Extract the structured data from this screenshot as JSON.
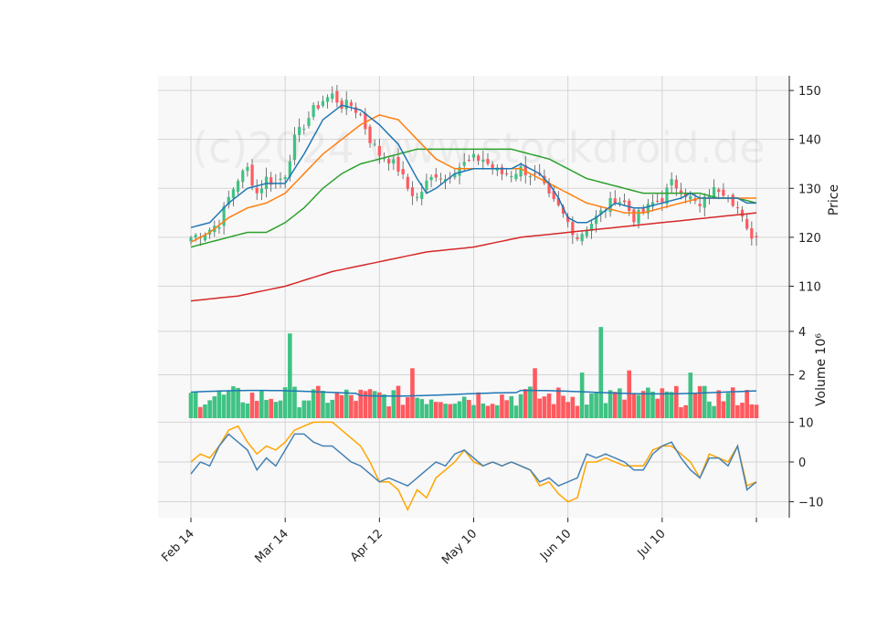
{
  "chart_data": {
    "type": "candlestick",
    "watermark": "(c)2024 www.stockdroid.de",
    "colors": {
      "up": "#3fc283",
      "down": "#ff5a5f",
      "ma_fast": "#1f77b4",
      "ma_mid": "#ff7f0e",
      "ma_slow": "#2ca02c",
      "ma_long": "#d62728",
      "vol_ma": "#1f77b4",
      "osc_1": "#4682b4",
      "osc_2": "#ffa500"
    },
    "x_ticks": [
      {
        "label": "Feb 14",
        "index": 0
      },
      {
        "label": "Mar 14",
        "index": 20
      },
      {
        "label": "Apr 12",
        "index": 40
      },
      {
        "label": "May 10",
        "index": 60
      },
      {
        "label": "Jun 10",
        "index": 80
      },
      {
        "label": "Jul 10",
        "index": 100
      },
      {
        "label": "",
        "index": 120
      }
    ],
    "n_periods": 121,
    "price_panel": {
      "ylabel": "Price",
      "ylim": [
        103,
        153
      ],
      "yticks": [
        110,
        120,
        130,
        140,
        150
      ],
      "close_keypoints": [
        [
          0,
          120
        ],
        [
          3,
          121
        ],
        [
          6,
          123
        ],
        [
          8,
          128
        ],
        [
          10,
          132
        ],
        [
          12,
          134
        ],
        [
          14,
          129
        ],
        [
          16,
          132
        ],
        [
          18,
          131
        ],
        [
          20,
          133
        ],
        [
          22,
          140
        ],
        [
          24,
          143
        ],
        [
          26,
          146
        ],
        [
          28,
          148
        ],
        [
          30,
          149
        ],
        [
          32,
          147
        ],
        [
          34,
          147
        ],
        [
          36,
          145
        ],
        [
          38,
          140
        ],
        [
          40,
          137
        ],
        [
          42,
          136
        ],
        [
          44,
          134
        ],
        [
          46,
          130
        ],
        [
          48,
          128
        ],
        [
          50,
          131
        ],
        [
          52,
          133
        ],
        [
          54,
          132
        ],
        [
          56,
          134
        ],
        [
          58,
          135
        ],
        [
          60,
          136
        ],
        [
          62,
          136
        ],
        [
          64,
          134
        ],
        [
          66,
          133
        ],
        [
          68,
          133
        ],
        [
          70,
          134
        ],
        [
          72,
          133
        ],
        [
          74,
          132
        ],
        [
          76,
          128
        ],
        [
          78,
          126
        ],
        [
          80,
          123
        ],
        [
          82,
          120
        ],
        [
          84,
          122
        ],
        [
          86,
          124
        ],
        [
          88,
          126
        ],
        [
          90,
          128
        ],
        [
          92,
          127
        ],
        [
          94,
          124
        ],
        [
          96,
          125
        ],
        [
          98,
          127
        ],
        [
          100,
          128
        ],
        [
          102,
          131
        ],
        [
          104,
          130
        ],
        [
          106,
          128
        ],
        [
          108,
          126
        ],
        [
          110,
          129
        ],
        [
          112,
          130
        ],
        [
          114,
          129
        ],
        [
          116,
          126
        ],
        [
          118,
          121
        ],
        [
          120,
          120
        ]
      ],
      "ma_fast_keypoints": [
        [
          0,
          122
        ],
        [
          4,
          123
        ],
        [
          8,
          127
        ],
        [
          12,
          130
        ],
        [
          16,
          131
        ],
        [
          20,
          131
        ],
        [
          24,
          137
        ],
        [
          28,
          144
        ],
        [
          32,
          147
        ],
        [
          36,
          146
        ],
        [
          40,
          143
        ],
        [
          44,
          139
        ],
        [
          48,
          132
        ],
        [
          50,
          129
        ],
        [
          52,
          130
        ],
        [
          56,
          133
        ],
        [
          60,
          134
        ],
        [
          64,
          134
        ],
        [
          68,
          134
        ],
        [
          70,
          135
        ],
        [
          74,
          133
        ],
        [
          76,
          131
        ],
        [
          78,
          128
        ],
        [
          80,
          124
        ],
        [
          82,
          123
        ],
        [
          84,
          123
        ],
        [
          86,
          124
        ],
        [
          90,
          127
        ],
        [
          94,
          126
        ],
        [
          96,
          126
        ],
        [
          100,
          127
        ],
        [
          104,
          128
        ],
        [
          106,
          129
        ],
        [
          108,
          128
        ],
        [
          112,
          128
        ],
        [
          116,
          128
        ],
        [
          118,
          127
        ],
        [
          120,
          127
        ]
      ],
      "ma_mid_keypoints": [
        [
          0,
          119
        ],
        [
          4,
          121
        ],
        [
          8,
          124
        ],
        [
          12,
          126
        ],
        [
          16,
          127
        ],
        [
          20,
          129
        ],
        [
          24,
          133
        ],
        [
          28,
          137
        ],
        [
          32,
          140
        ],
        [
          36,
          143
        ],
        [
          40,
          145
        ],
        [
          44,
          144
        ],
        [
          48,
          140
        ],
        [
          52,
          136
        ],
        [
          56,
          134
        ],
        [
          60,
          134
        ],
        [
          64,
          134
        ],
        [
          68,
          134
        ],
        [
          70,
          134
        ],
        [
          72,
          133
        ],
        [
          76,
          131
        ],
        [
          80,
          129
        ],
        [
          84,
          127
        ],
        [
          88,
          126
        ],
        [
          92,
          125
        ],
        [
          96,
          125
        ],
        [
          100,
          126
        ],
        [
          104,
          127
        ],
        [
          108,
          128
        ],
        [
          112,
          128
        ],
        [
          116,
          128
        ],
        [
          120,
          128
        ]
      ],
      "ma_slow_keypoints": [
        [
          0,
          118
        ],
        [
          4,
          119
        ],
        [
          8,
          120
        ],
        [
          12,
          121
        ],
        [
          16,
          121
        ],
        [
          20,
          123
        ],
        [
          24,
          126
        ],
        [
          28,
          130
        ],
        [
          32,
          133
        ],
        [
          36,
          135
        ],
        [
          40,
          136
        ],
        [
          44,
          137
        ],
        [
          48,
          138
        ],
        [
          52,
          138
        ],
        [
          56,
          138
        ],
        [
          60,
          138
        ],
        [
          64,
          138
        ],
        [
          68,
          138
        ],
        [
          72,
          137
        ],
        [
          76,
          136
        ],
        [
          80,
          134
        ],
        [
          84,
          132
        ],
        [
          88,
          131
        ],
        [
          92,
          130
        ],
        [
          96,
          129
        ],
        [
          100,
          129
        ],
        [
          104,
          129
        ],
        [
          108,
          129
        ],
        [
          112,
          128
        ],
        [
          116,
          128
        ],
        [
          120,
          127
        ]
      ],
      "ma_long_keypoints": [
        [
          0,
          107
        ],
        [
          10,
          108
        ],
        [
          20,
          110
        ],
        [
          30,
          113
        ],
        [
          40,
          115
        ],
        [
          50,
          117
        ],
        [
          60,
          118
        ],
        [
          70,
          120
        ],
        [
          80,
          121
        ],
        [
          90,
          122
        ],
        [
          100,
          123
        ],
        [
          110,
          124
        ],
        [
          120,
          125
        ]
      ]
    },
    "volume_panel": {
      "ylabel": "Volume  10⁶",
      "ylim": [
        0,
        4.5
      ],
      "yticks": [
        2,
        4
      ],
      "ma_level": 1.2,
      "spikes": [
        {
          "index": 21,
          "value": 3.9
        },
        {
          "index": 47,
          "value": 2.3
        },
        {
          "index": 73,
          "value": 2.3
        },
        {
          "index": 83,
          "value": 2.1
        },
        {
          "index": 87,
          "value": 4.2
        },
        {
          "index": 93,
          "value": 2.2
        },
        {
          "index": 106,
          "value": 2.1
        }
      ]
    },
    "oscillator_panel": {
      "ylabel": "",
      "ylim": [
        -14,
        11
      ],
      "yticks": [
        10,
        0,
        -10
      ],
      "line1_keypoints": [
        [
          0,
          -3
        ],
        [
          2,
          0
        ],
        [
          4,
          -1
        ],
        [
          6,
          4
        ],
        [
          8,
          7
        ],
        [
          10,
          5
        ],
        [
          12,
          3
        ],
        [
          14,
          -2
        ],
        [
          16,
          1
        ],
        [
          18,
          -1
        ],
        [
          20,
          3
        ],
        [
          22,
          7
        ],
        [
          24,
          7
        ],
        [
          26,
          5
        ],
        [
          28,
          4
        ],
        [
          30,
          4
        ],
        [
          32,
          2
        ],
        [
          34,
          0
        ],
        [
          36,
          -1
        ],
        [
          38,
          -3
        ],
        [
          40,
          -5
        ],
        [
          42,
          -4
        ],
        [
          44,
          -5
        ],
        [
          46,
          -6
        ],
        [
          48,
          -4
        ],
        [
          50,
          -2
        ],
        [
          52,
          0
        ],
        [
          54,
          -1
        ],
        [
          56,
          2
        ],
        [
          58,
          3
        ],
        [
          60,
          1
        ],
        [
          62,
          -1
        ],
        [
          64,
          0
        ],
        [
          66,
          -1
        ],
        [
          68,
          0
        ],
        [
          70,
          -1
        ],
        [
          72,
          -2
        ],
        [
          74,
          -5
        ],
        [
          76,
          -4
        ],
        [
          78,
          -6
        ],
        [
          80,
          -5
        ],
        [
          82,
          -4
        ],
        [
          84,
          2
        ],
        [
          86,
          1
        ],
        [
          88,
          2
        ],
        [
          90,
          1
        ],
        [
          92,
          0
        ],
        [
          94,
          -2
        ],
        [
          96,
          -2
        ],
        [
          98,
          2
        ],
        [
          100,
          4
        ],
        [
          102,
          5
        ],
        [
          104,
          1
        ],
        [
          106,
          -2
        ],
        [
          108,
          -4
        ],
        [
          110,
          1
        ],
        [
          112,
          1
        ],
        [
          114,
          -1
        ],
        [
          116,
          4
        ],
        [
          118,
          -7
        ],
        [
          120,
          -5
        ]
      ],
      "line2_keypoints": [
        [
          0,
          0
        ],
        [
          2,
          2
        ],
        [
          4,
          1
        ],
        [
          6,
          4
        ],
        [
          8,
          8
        ],
        [
          10,
          9
        ],
        [
          12,
          5
        ],
        [
          14,
          2
        ],
        [
          16,
          4
        ],
        [
          18,
          3
        ],
        [
          20,
          5
        ],
        [
          22,
          8
        ],
        [
          24,
          9
        ],
        [
          26,
          10
        ],
        [
          28,
          10
        ],
        [
          30,
          10
        ],
        [
          32,
          8
        ],
        [
          34,
          6
        ],
        [
          36,
          4
        ],
        [
          38,
          0
        ],
        [
          40,
          -5
        ],
        [
          42,
          -5
        ],
        [
          44,
          -7
        ],
        [
          46,
          -12
        ],
        [
          48,
          -7
        ],
        [
          50,
          -9
        ],
        [
          52,
          -4
        ],
        [
          54,
          -2
        ],
        [
          56,
          0
        ],
        [
          58,
          3
        ],
        [
          60,
          0
        ],
        [
          62,
          -1
        ],
        [
          64,
          0
        ],
        [
          66,
          -1
        ],
        [
          68,
          0
        ],
        [
          70,
          -1
        ],
        [
          72,
          -2
        ],
        [
          74,
          -6
        ],
        [
          76,
          -5
        ],
        [
          78,
          -8
        ],
        [
          80,
          -10
        ],
        [
          82,
          -9
        ],
        [
          84,
          0
        ],
        [
          86,
          0
        ],
        [
          88,
          1
        ],
        [
          90,
          0
        ],
        [
          92,
          -1
        ],
        [
          94,
          -1
        ],
        [
          96,
          -1
        ],
        [
          98,
          3
        ],
        [
          100,
          4
        ],
        [
          102,
          4
        ],
        [
          104,
          2
        ],
        [
          106,
          0
        ],
        [
          108,
          -4
        ],
        [
          110,
          2
        ],
        [
          112,
          1
        ],
        [
          114,
          0
        ],
        [
          116,
          4
        ],
        [
          118,
          -6
        ],
        [
          120,
          -5
        ]
      ]
    }
  }
}
